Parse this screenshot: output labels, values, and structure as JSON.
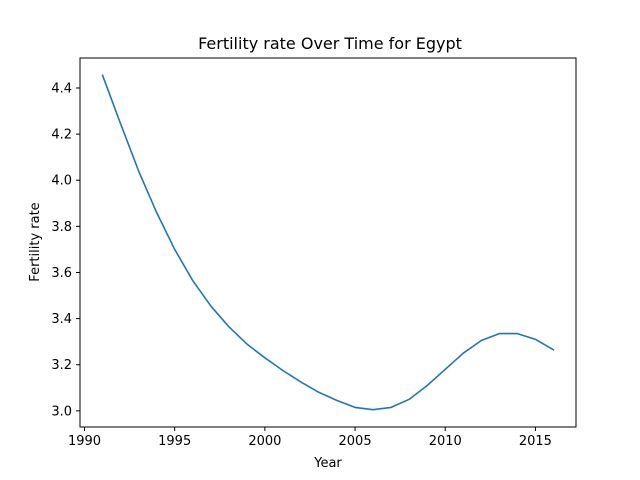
{
  "chart_data": {
    "type": "line",
    "title": "Fertility rate Over Time for Egypt",
    "xlabel": "Year",
    "ylabel": "Fertility rate",
    "xlim": [
      1989.75,
      2017.25
    ],
    "ylim": [
      2.93,
      4.53
    ],
    "xticks": [
      1990,
      1995,
      2000,
      2005,
      2010,
      2015
    ],
    "yticks": [
      3.0,
      3.2,
      3.4,
      3.6,
      3.8,
      4.0,
      4.2,
      4.4
    ],
    "ytick_labels": [
      "3.0",
      "3.2",
      "3.4",
      "3.6",
      "3.8",
      "4.0",
      "4.2",
      "4.4"
    ],
    "grid": false,
    "series": [
      {
        "color": "#1f77b4",
        "x": [
          1991,
          1992,
          1993,
          1994,
          1995,
          1996,
          1997,
          1998,
          1999,
          2000,
          2001,
          2002,
          2003,
          2004,
          2005,
          2006,
          2007,
          2008,
          2009,
          2010,
          2011,
          2012,
          2013,
          2014,
          2015,
          2016
        ],
        "y": [
          4.455,
          4.245,
          4.04,
          3.86,
          3.7,
          3.565,
          3.455,
          3.365,
          3.29,
          3.23,
          3.175,
          3.125,
          3.08,
          3.045,
          3.015,
          3.005,
          3.015,
          3.05,
          3.11,
          3.18,
          3.25,
          3.305,
          3.335,
          3.335,
          3.31,
          3.265
        ]
      }
    ]
  }
}
